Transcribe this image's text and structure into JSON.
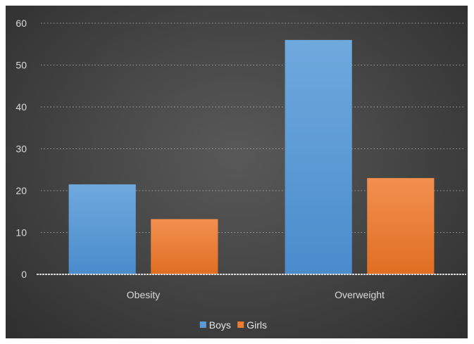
{
  "chart_data": {
    "type": "bar",
    "title": "",
    "xlabel": "",
    "ylabel": "",
    "categories": [
      "Obesity",
      "Overweight"
    ],
    "series": [
      {
        "name": "Boys",
        "values": [
          21.5,
          56
        ],
        "color": "#5b9bd5"
      },
      {
        "name": "Girls",
        "values": [
          13.2,
          23
        ],
        "color": "#ed7d31"
      }
    ],
    "ylim": [
      0,
      60
    ],
    "yticks": [
      0,
      10,
      20,
      30,
      40,
      50,
      60
    ],
    "grid": true,
    "legend_position": "bottom"
  }
}
